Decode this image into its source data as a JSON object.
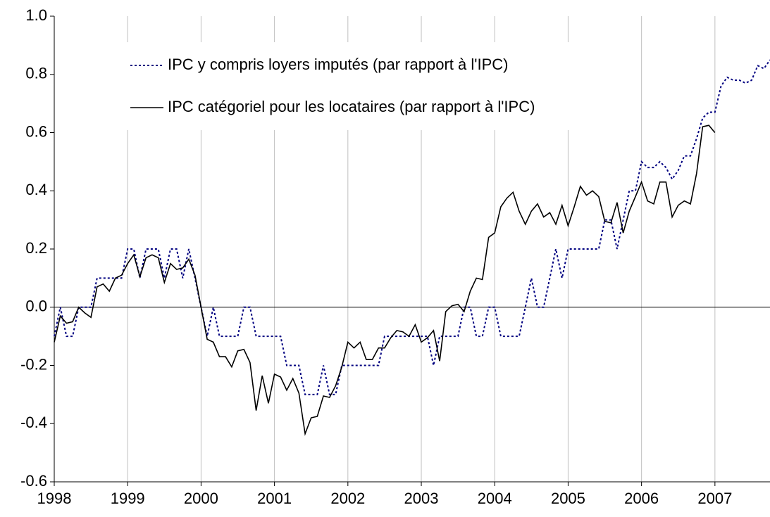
{
  "chart_data": {
    "type": "line",
    "x": [
      1998,
      1998.083,
      1998.167,
      1998.25,
      1998.333,
      1998.417,
      1998.5,
      1998.583,
      1998.667,
      1998.75,
      1998.833,
      1998.917,
      1999,
      1999.083,
      1999.167,
      1999.25,
      1999.333,
      1999.417,
      1999.5,
      1999.583,
      1999.667,
      1999.75,
      1999.833,
      1999.917,
      2000,
      2000.083,
      2000.167,
      2000.25,
      2000.333,
      2000.417,
      2000.5,
      2000.583,
      2000.667,
      2000.75,
      2000.833,
      2000.917,
      2001,
      2001.083,
      2001.167,
      2001.25,
      2001.333,
      2001.417,
      2001.5,
      2001.583,
      2001.667,
      2001.75,
      2001.833,
      2001.917,
      2002,
      2002.083,
      2002.167,
      2002.25,
      2002.333,
      2002.417,
      2002.5,
      2002.583,
      2002.667,
      2002.75,
      2002.833,
      2002.917,
      2003,
      2003.083,
      2003.167,
      2003.25,
      2003.333,
      2003.417,
      2003.5,
      2003.583,
      2003.667,
      2003.75,
      2003.833,
      2003.917,
      2004,
      2004.083,
      2004.167,
      2004.25,
      2004.333,
      2004.417,
      2004.5,
      2004.583,
      2004.667,
      2004.75,
      2004.833,
      2004.917,
      2005,
      2005.083,
      2005.167,
      2005.25,
      2005.333,
      2005.417,
      2005.5,
      2005.583,
      2005.667,
      2005.75,
      2005.833,
      2005.917,
      2006,
      2006.083,
      2006.167,
      2006.25,
      2006.333,
      2006.417,
      2006.5,
      2006.583,
      2006.667,
      2006.75,
      2006.833,
      2006.917,
      2007,
      2007.083,
      2007.167,
      2007.25,
      2007.333,
      2007.417,
      2007.5,
      2007.583,
      2007.667,
      2007.75
    ],
    "series": [
      {
        "name": "IPC y compris loyers imputés (par rapport à l'IPC)",
        "color": "#000080",
        "dash": true,
        "values": [
          -0.1,
          0.0,
          -0.1,
          -0.1,
          0.0,
          0.0,
          0.0,
          0.1,
          0.1,
          0.1,
          0.1,
          0.1,
          0.2,
          0.2,
          0.1,
          0.2,
          0.2,
          0.2,
          0.1,
          0.2,
          0.2,
          0.1,
          0.2,
          0.1,
          0.0,
          -0.1,
          0.0,
          -0.1,
          -0.1,
          -0.1,
          -0.1,
          0.0,
          0.0,
          -0.1,
          -0.1,
          -0.1,
          -0.1,
          -0.1,
          -0.2,
          -0.2,
          -0.2,
          -0.3,
          -0.3,
          -0.3,
          -0.2,
          -0.3,
          -0.3,
          -0.2,
          -0.2,
          -0.2,
          -0.2,
          -0.2,
          -0.2,
          -0.2,
          -0.1,
          -0.1,
          -0.1,
          -0.1,
          -0.1,
          -0.1,
          -0.1,
          -0.1,
          -0.2,
          -0.1,
          -0.1,
          -0.1,
          -0.1,
          0.0,
          0.0,
          -0.1,
          -0.1,
          0.0,
          0.0,
          -0.1,
          -0.1,
          -0.1,
          -0.1,
          0.0,
          0.1,
          0.0,
          0.0,
          0.1,
          0.2,
          0.1,
          0.2,
          0.2,
          0.2,
          0.2,
          0.2,
          0.2,
          0.3,
          0.3,
          0.2,
          0.3,
          0.4,
          0.4,
          0.5,
          0.48,
          0.48,
          0.5,
          0.48,
          0.44,
          0.47,
          0.52,
          0.52,
          0.58,
          0.65,
          0.67,
          0.67,
          0.76,
          0.79,
          0.78,
          0.78,
          0.77,
          0.78,
          0.83,
          0.82,
          0.85
        ]
      },
      {
        "name": "IPC catégoriel pour les locataires (par rapport à l'IPC)",
        "color": "#000000",
        "dash": false,
        "values": [
          -0.12,
          -0.03,
          -0.055,
          -0.05,
          0.0,
          -0.02,
          -0.035,
          0.07,
          0.08,
          0.055,
          0.1,
          0.11,
          0.15,
          0.18,
          0.105,
          0.17,
          0.18,
          0.17,
          0.085,
          0.15,
          0.13,
          0.135,
          0.165,
          0.11,
          0.0,
          -0.11,
          -0.12,
          -0.17,
          -0.17,
          -0.205,
          -0.15,
          -0.145,
          -0.19,
          -0.355,
          -0.235,
          -0.33,
          -0.23,
          -0.24,
          -0.285,
          -0.245,
          -0.295,
          -0.435,
          -0.38,
          -0.375,
          -0.305,
          -0.31,
          -0.27,
          -0.205,
          -0.12,
          -0.14,
          -0.12,
          -0.18,
          -0.18,
          -0.14,
          -0.14,
          -0.105,
          -0.08,
          -0.085,
          -0.1,
          -0.06,
          -0.12,
          -0.105,
          -0.08,
          -0.185,
          -0.015,
          0.005,
          0.01,
          -0.015,
          0.055,
          0.1,
          0.095,
          0.24,
          0.255,
          0.345,
          0.375,
          0.395,
          0.33,
          0.285,
          0.33,
          0.355,
          0.31,
          0.325,
          0.285,
          0.35,
          0.28,
          0.345,
          0.415,
          0.385,
          0.4,
          0.38,
          0.295,
          0.29,
          0.36,
          0.255,
          0.33,
          0.38,
          0.43,
          0.365,
          0.355,
          0.43,
          0.43,
          0.31,
          0.35,
          0.365,
          0.355,
          0.46,
          0.62,
          0.625,
          0.6,
          null,
          null,
          null,
          null,
          null,
          null,
          null,
          null,
          null
        ]
      }
    ],
    "xlim": [
      1998,
      2007.75
    ],
    "xticks": [
      1998,
      1999,
      2000,
      2001,
      2002,
      2003,
      2004,
      2005,
      2006,
      2007
    ],
    "ylim": [
      -0.6,
      1.0
    ],
    "yticks": [
      {
        "value": -0.6,
        "label": "-0.6"
      },
      -0.4,
      -0.2,
      {
        "value": 0,
        "label": "0.0"
      },
      0.2,
      0.4,
      0.6,
      0.8,
      {
        "value": 1,
        "label": "1.0"
      }
    ],
    "grid": "x",
    "legend": "upper left"
  }
}
